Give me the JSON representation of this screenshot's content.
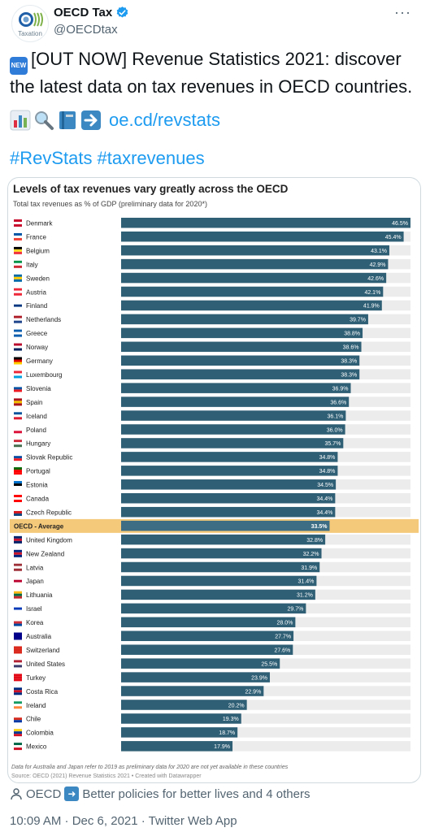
{
  "tweet": {
    "avatar_text": "Taxation",
    "display_name": "OECD Tax",
    "handle": "@OECDtax",
    "more": "···",
    "new_badge": "NEW",
    "text": "[OUT NOW] Revenue Statistics 2021: discover the latest data on tax revenues in OECD countries.",
    "link": "oe.cd/revstats",
    "hashtags": [
      "#RevStats",
      "#taxrevenues"
    ],
    "mentions_prefix": "OECD",
    "mentions_rest": "Better policies for better lives and 4 others",
    "timestamp": "10:09 AM · Dec 6, 2021 · Twitter Web App"
  },
  "colors": {
    "bar": "#2f5f75",
    "average_bar": "#3c6d84",
    "average_highlight": "#f5c97a",
    "track": "#ececec",
    "link": "#1d9bf0",
    "verified": "#1d9bf0"
  },
  "chart_data": {
    "type": "bar",
    "orientation": "horizontal",
    "title": "Levels of tax revenues vary greatly across the OECD",
    "subtitle": "Total tax revenues as % of GDP (preliminary data for 2020*)",
    "categories": [
      "Denmark",
      "France",
      "Belgium",
      "Italy",
      "Sweden",
      "Austria",
      "Finland",
      "Netherlands",
      "Greece",
      "Norway",
      "Germany",
      "Luxembourg",
      "Slovenia",
      "Spain",
      "Iceland",
      "Poland",
      "Hungary",
      "Slovak Republic",
      "Portugal",
      "Estonia",
      "Canada",
      "Czech Republic",
      "OECD - Average",
      "United Kingdom",
      "New Zealand",
      "Latvia",
      "Japan",
      "Lithuania",
      "Israel",
      "Korea",
      "Australia",
      "Switzerland",
      "United States",
      "Turkey",
      "Costa Rica",
      "Ireland",
      "Chile",
      "Colombia",
      "Mexico"
    ],
    "values": [
      46.5,
      45.4,
      43.1,
      42.9,
      42.6,
      42.1,
      41.9,
      39.7,
      38.8,
      38.6,
      38.3,
      38.3,
      36.9,
      36.6,
      36.1,
      36.0,
      35.7,
      34.8,
      34.8,
      34.5,
      34.4,
      34.4,
      33.5,
      32.8,
      32.2,
      31.9,
      31.4,
      31.2,
      29.7,
      28.0,
      27.7,
      27.6,
      25.5,
      23.9,
      22.9,
      20.2,
      19.3,
      18.7,
      17.9
    ],
    "value_labels": [
      "46.5%",
      "45.4%",
      "43.1%",
      "42.9%",
      "42.6%",
      "42.1%",
      "41.9%",
      "39.7%",
      "38.8%",
      "38.6%",
      "38.3%",
      "38.3%",
      "36.9%",
      "36.6%",
      "36.1%",
      "36.0%",
      "35.7%",
      "34.8%",
      "34.8%",
      "34.5%",
      "34.4%",
      "34.4%",
      "33.5%",
      "32.8%",
      "32.2%",
      "31.9%",
      "31.4%",
      "31.2%",
      "29.7%",
      "28.0%",
      "27.7%",
      "27.6%",
      "25.5%",
      "23.9%",
      "22.9%",
      "20.2%",
      "19.3%",
      "18.7%",
      "17.9%"
    ],
    "highlight": "OECD - Average",
    "xlim": [
      0,
      46.5
    ],
    "note": "Data for Australia and Japan refer to 2019 as preliminary data for 2020 are not yet available in these countries",
    "source": "Source: OECD (2021) Revenue Statistics 2021 • Created with Datawrapper",
    "flag_colors": [
      [
        "#c8102e",
        "#ffffff",
        "#c8102e"
      ],
      [
        "#0055a4",
        "#ffffff",
        "#ef4135"
      ],
      [
        "#000000",
        "#fdda24",
        "#ef3340"
      ],
      [
        "#009246",
        "#ffffff",
        "#ce2b37"
      ],
      [
        "#006aa7",
        "#fecc00",
        "#006aa7"
      ],
      [
        "#ed2939",
        "#ffffff",
        "#ed2939"
      ],
      [
        "#ffffff",
        "#003580",
        "#ffffff"
      ],
      [
        "#ae1c28",
        "#ffffff",
        "#21468b"
      ],
      [
        "#0d5eaf",
        "#ffffff",
        "#0d5eaf"
      ],
      [
        "#ba0c2f",
        "#ffffff",
        "#00205b"
      ],
      [
        "#000000",
        "#dd0000",
        "#ffce00"
      ],
      [
        "#ed2939",
        "#ffffff",
        "#00a1de"
      ],
      [
        "#ffffff",
        "#0051a2",
        "#ed1c24"
      ],
      [
        "#aa151b",
        "#f1bf00",
        "#aa151b"
      ],
      [
        "#02529c",
        "#ffffff",
        "#dc1e35"
      ],
      [
        "#ffffff",
        "#ffffff",
        "#dc143c"
      ],
      [
        "#ce2939",
        "#ffffff",
        "#477050"
      ],
      [
        "#ffffff",
        "#0b4ea2",
        "#ee1c25"
      ],
      [
        "#006600",
        "#ff0000",
        "#ff0000"
      ],
      [
        "#0072ce",
        "#000000",
        "#ffffff"
      ],
      [
        "#ff0000",
        "#ffffff",
        "#ff0000"
      ],
      [
        "#ffffff",
        "#d7141a",
        "#11457e"
      ],
      [
        "#f5c97a",
        "#f5c97a",
        "#f5c97a"
      ],
      [
        "#012169",
        "#c8102e",
        "#012169"
      ],
      [
        "#00247d",
        "#cc142b",
        "#00247d"
      ],
      [
        "#9e3039",
        "#ffffff",
        "#9e3039"
      ],
      [
        "#ffffff",
        "#bc002d",
        "#ffffff"
      ],
      [
        "#fdb913",
        "#006a44",
        "#c1272d"
      ],
      [
        "#ffffff",
        "#0038b8",
        "#ffffff"
      ],
      [
        "#ffffff",
        "#cd2e3a",
        "#0047a0"
      ],
      [
        "#00008b",
        "#00008b",
        "#00008b"
      ],
      [
        "#da291c",
        "#da291c",
        "#da291c"
      ],
      [
        "#b22234",
        "#ffffff",
        "#3c3b6e"
      ],
      [
        "#e30a17",
        "#e30a17",
        "#e30a17"
      ],
      [
        "#002b7f",
        "#ce1126",
        "#002b7f"
      ],
      [
        "#169b62",
        "#ffffff",
        "#ff883e"
      ],
      [
        "#ffffff",
        "#d52b1e",
        "#0039a6"
      ],
      [
        "#fcd116",
        "#003893",
        "#ce1126"
      ],
      [
        "#006847",
        "#ffffff",
        "#ce1126"
      ]
    ]
  }
}
